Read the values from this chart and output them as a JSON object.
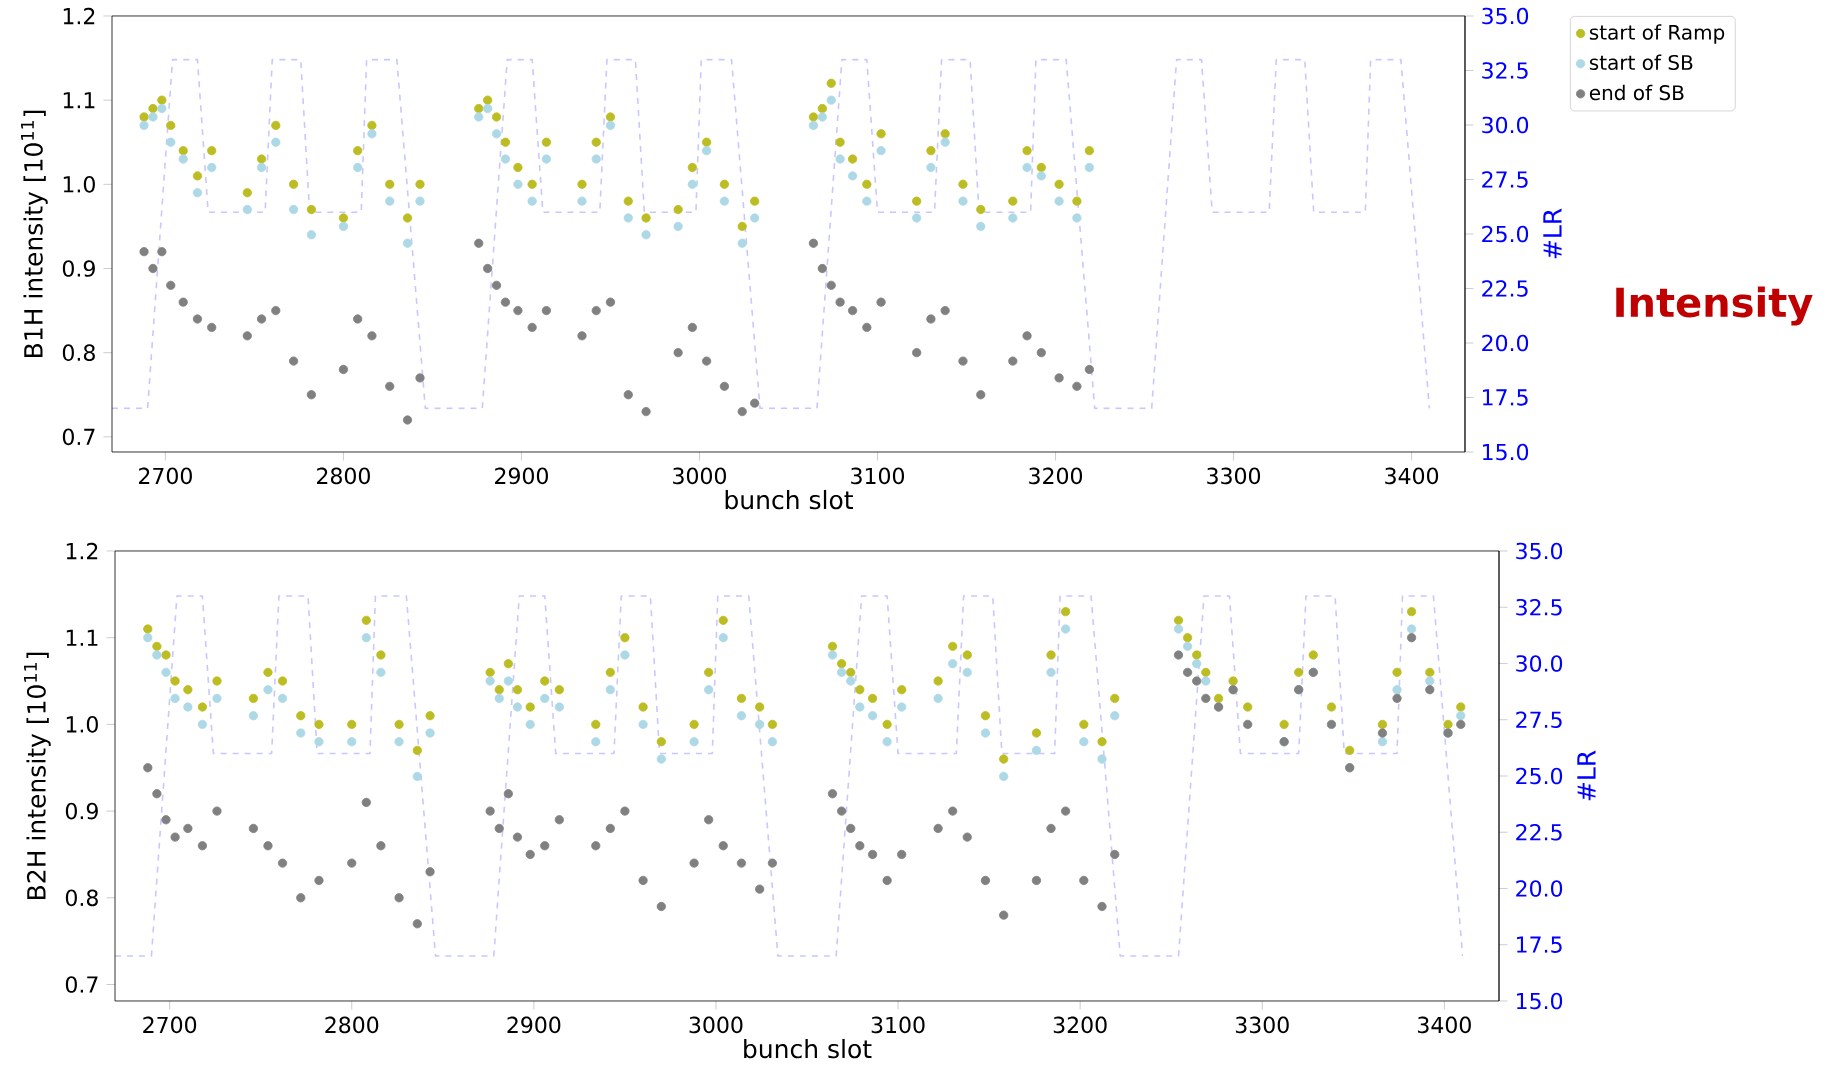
{
  "chart_data": [
    {
      "type": "scatter",
      "xlabel": "bunch slot",
      "ylabel": "B1H intensity [10$^{11}$]",
      "y2label": "#LR",
      "annotations": [
        "**Intensity**"
      ],
      "xlim": [
        2670,
        3430
      ],
      "xticks": [
        2700,
        2800,
        2900,
        3000,
        3100,
        3200,
        3300,
        3400
      ],
      "ylim": [
        0.682,
        1.2
      ],
      "yticks": [
        0.7,
        0.8,
        0.9,
        {
          "value": 1,
          "label": "1.0"
        },
        1.1,
        1.2
      ],
      "y2lim": [
        15,
        35
      ],
      "y2ticks": [
        {
          "value": 15,
          "label": "15.0"
        },
        17.5,
        {
          "value": 20,
          "label": "20.0"
        },
        22.5,
        {
          "value": 25,
          "label": "25.0"
        },
        27.5,
        {
          "value": 30,
          "label": "30.0"
        },
        32.5,
        {
          "value": 35,
          "label": "35.0"
        }
      ],
      "legend": "top right",
      "x": [
        2688,
        2693,
        2698,
        2703,
        2710,
        2718,
        2726,
        2746,
        2754,
        2762,
        2772,
        2782,
        2800,
        2808,
        2816,
        2826,
        2836,
        2843,
        2876,
        2881,
        2886,
        2891,
        2898,
        2906,
        2914,
        2934,
        2942,
        2950,
        2960,
        2970,
        2988,
        2996,
        3004,
        3014,
        3024,
        3031,
        3064,
        3069,
        3074,
        3079,
        3086,
        3094,
        3102,
        3122,
        3130,
        3138,
        3148,
        3158,
        3176,
        3184,
        3192,
        3202,
        3212,
        3219
      ],
      "series": [
        {
          "name": "start of Ramp",
          "marker": "circle",
          "color": "#bcbd22",
          "values": [
            1.08,
            1.09,
            1.1,
            1.07,
            1.04,
            1.01,
            1.04,
            0.99,
            1.03,
            1.07,
            1.0,
            0.97,
            0.96,
            1.04,
            1.07,
            1.0,
            0.96,
            1.0,
            1.09,
            1.1,
            1.08,
            1.05,
            1.02,
            1.0,
            1.05,
            1.0,
            1.05,
            1.08,
            0.98,
            0.96,
            0.97,
            1.02,
            1.05,
            1.0,
            0.95,
            0.98,
            1.08,
            1.09,
            1.12,
            1.05,
            1.03,
            1.0,
            1.06,
            0.98,
            1.04,
            1.06,
            1.0,
            0.97,
            0.98,
            1.04,
            1.02,
            1.0,
            0.98,
            1.04
          ]
        },
        {
          "name": "start of SB",
          "marker": "circle",
          "color": "#add8e6",
          "values": [
            1.07,
            1.08,
            1.09,
            1.05,
            1.03,
            0.99,
            1.02,
            0.97,
            1.02,
            1.05,
            0.97,
            0.94,
            0.95,
            1.02,
            1.06,
            0.98,
            0.93,
            0.98,
            1.08,
            1.09,
            1.06,
            1.03,
            1.0,
            0.98,
            1.03,
            0.98,
            1.03,
            1.07,
            0.96,
            0.94,
            0.95,
            1.0,
            1.04,
            0.98,
            0.93,
            0.96,
            1.07,
            1.08,
            1.1,
            1.03,
            1.01,
            0.98,
            1.04,
            0.96,
            1.02,
            1.05,
            0.98,
            0.95,
            0.96,
            1.02,
            1.01,
            0.98,
            0.96,
            1.02
          ]
        },
        {
          "name": "end of SB",
          "marker": "circle",
          "color": "#808080",
          "values": [
            0.92,
            0.9,
            0.92,
            0.88,
            0.86,
            0.84,
            0.83,
            0.82,
            0.84,
            0.85,
            0.79,
            0.75,
            0.78,
            0.84,
            0.82,
            0.76,
            0.72,
            0.77,
            0.93,
            0.9,
            0.88,
            0.86,
            0.85,
            0.83,
            0.85,
            0.82,
            0.85,
            0.86,
            0.75,
            0.73,
            0.8,
            0.83,
            0.79,
            0.76,
            0.73,
            0.74,
            0.93,
            0.9,
            0.88,
            0.86,
            0.85,
            0.83,
            0.86,
            0.8,
            0.84,
            0.85,
            0.79,
            0.75,
            0.79,
            0.82,
            0.8,
            0.77,
            0.76,
            0.78
          ]
        },
        {
          "type": "line",
          "axis": "y2",
          "line_style": "dashed",
          "marker": "none",
          "color": "#c8c8ff",
          "x": [
            2670,
            2690,
            2704,
            2718,
            2724,
            2756,
            2760,
            2776,
            2781,
            2810,
            2813,
            2830,
            2846,
            2878,
            2892,
            2906,
            2912,
            2944,
            2948,
            2964,
            2969,
            2998,
            3001,
            3018,
            3034,
            3066,
            3080,
            3094,
            3100,
            3132,
            3136,
            3152,
            3157,
            3186,
            3189,
            3206,
            3222,
            3254,
            3268,
            3282,
            3288,
            3320,
            3324,
            3340,
            3345,
            3374,
            3377,
            3394,
            3410
          ],
          "values": [
            17,
            17,
            33,
            33,
            26,
            26,
            33,
            33,
            26,
            26,
            33,
            33,
            17,
            17,
            33,
            33,
            26,
            26,
            33,
            33,
            26,
            26,
            33,
            33,
            17,
            17,
            33,
            33,
            26,
            26,
            33,
            33,
            26,
            26,
            33,
            33,
            17,
            17,
            33,
            33,
            26,
            26,
            33,
            33,
            26,
            26,
            33,
            33,
            17
          ]
        }
      ]
    },
    {
      "type": "scatter",
      "xlabel": "bunch slot",
      "ylabel": "B2H intensity [10$^{11}$]",
      "y2label": "#LR",
      "xlim": [
        2670,
        3430
      ],
      "xticks": [
        2700,
        2800,
        2900,
        3000,
        3100,
        3200,
        3300,
        3400
      ],
      "ylim": [
        0.681,
        1.2
      ],
      "yticks": [
        0.7,
        0.8,
        0.9,
        {
          "value": 1,
          "label": "1.0"
        },
        1.1,
        1.2
      ],
      "y2lim": [
        15,
        35
      ],
      "y2ticks": [
        {
          "value": 15,
          "label": "15.0"
        },
        17.5,
        {
          "value": 20,
          "label": "20.0"
        },
        22.5,
        {
          "value": 25,
          "label": "25.0"
        },
        27.5,
        {
          "value": 30,
          "label": "30.0"
        },
        32.5,
        {
          "value": 35,
          "label": "35.0"
        }
      ],
      "x": [
        2688,
        2693,
        2698,
        2703,
        2710,
        2718,
        2726,
        2746,
        2754,
        2762,
        2772,
        2782,
        2800,
        2808,
        2816,
        2826,
        2836,
        2843,
        2876,
        2881,
        2886,
        2891,
        2898,
        2906,
        2914,
        2934,
        2942,
        2950,
        2960,
        2970,
        2988,
        2996,
        3004,
        3014,
        3024,
        3031,
        3064,
        3069,
        3074,
        3079,
        3086,
        3094,
        3102,
        3122,
        3130,
        3138,
        3148,
        3158,
        3176,
        3184,
        3192,
        3202,
        3212,
        3219,
        3254,
        3259,
        3264,
        3269,
        3276,
        3284,
        3292,
        3312,
        3320,
        3328,
        3338,
        3348,
        3366,
        3374,
        3382,
        3392,
        3402,
        3409
      ],
      "series": [
        {
          "marker": "circle",
          "color": "#bcbd22",
          "values": [
            1.11,
            1.09,
            1.08,
            1.05,
            1.04,
            1.02,
            1.05,
            1.03,
            1.06,
            1.05,
            1.01,
            1.0,
            1.0,
            1.12,
            1.08,
            1.0,
            0.97,
            1.01,
            1.06,
            1.04,
            1.07,
            1.04,
            1.02,
            1.05,
            1.04,
            1.0,
            1.06,
            1.1,
            1.02,
            0.98,
            1.0,
            1.06,
            1.12,
            1.03,
            1.02,
            1.0,
            1.09,
            1.07,
            1.06,
            1.04,
            1.03,
            1.0,
            1.04,
            1.05,
            1.09,
            1.08,
            1.01,
            0.96,
            0.99,
            1.08,
            1.13,
            1.0,
            0.98,
            1.03,
            1.12,
            1.1,
            1.08,
            1.06,
            1.03,
            1.05,
            1.02,
            1.0,
            1.06,
            1.08,
            1.02,
            0.97,
            1.0,
            1.06,
            1.13,
            1.06,
            1.0,
            1.02
          ]
        },
        {
          "marker": "circle",
          "color": "#add8e6",
          "values": [
            1.1,
            1.08,
            1.06,
            1.03,
            1.02,
            1.0,
            1.03,
            1.01,
            1.04,
            1.03,
            0.99,
            0.98,
            0.98,
            1.1,
            1.06,
            0.98,
            0.94,
            0.99,
            1.05,
            1.03,
            1.05,
            1.02,
            1.0,
            1.03,
            1.02,
            0.98,
            1.04,
            1.08,
            1.0,
            0.96,
            0.98,
            1.04,
            1.1,
            1.01,
            1.0,
            0.98,
            1.08,
            1.06,
            1.05,
            1.02,
            1.01,
            0.98,
            1.02,
            1.03,
            1.07,
            1.06,
            0.99,
            0.94,
            0.97,
            1.06,
            1.11,
            0.98,
            0.96,
            1.01,
            1.11,
            1.09,
            1.07,
            1.05,
            1.02,
            1.04,
            null,
            0.98,
            1.04,
            1.06,
            null,
            0.95,
            0.98,
            1.04,
            1.11,
            1.05,
            0.99,
            1.01
          ]
        },
        {
          "marker": "circle",
          "color": "#808080",
          "values": [
            0.95,
            0.92,
            0.89,
            0.87,
            0.88,
            0.86,
            0.9,
            0.88,
            0.86,
            0.84,
            0.8,
            0.82,
            0.84,
            0.91,
            0.86,
            0.8,
            0.77,
            0.83,
            0.9,
            0.88,
            0.92,
            0.87,
            0.85,
            0.86,
            0.89,
            0.86,
            0.88,
            0.9,
            0.82,
            0.79,
            0.84,
            0.89,
            0.86,
            0.84,
            0.81,
            0.84,
            0.92,
            0.9,
            0.88,
            0.86,
            0.85,
            0.82,
            0.85,
            0.88,
            0.9,
            0.87,
            0.82,
            0.78,
            0.82,
            0.88,
            0.9,
            0.82,
            0.79,
            0.85,
            1.08,
            1.06,
            1.05,
            1.03,
            1.02,
            1.04,
            1.0,
            0.98,
            1.04,
            1.06,
            1.0,
            0.95,
            0.99,
            1.03,
            1.1,
            1.04,
            0.99,
            1.0
          ]
        },
        {
          "type": "line",
          "axis": "y2",
          "line_style": "dashed",
          "marker": "none",
          "color": "#c8c8ff",
          "x": [
            2670,
            2690,
            2704,
            2718,
            2724,
            2756,
            2760,
            2776,
            2781,
            2810,
            2813,
            2830,
            2846,
            2878,
            2892,
            2906,
            2912,
            2944,
            2948,
            2964,
            2969,
            2998,
            3001,
            3018,
            3034,
            3066,
            3080,
            3094,
            3100,
            3132,
            3136,
            3152,
            3157,
            3186,
            3189,
            3206,
            3222,
            3254,
            3268,
            3282,
            3288,
            3320,
            3324,
            3340,
            3345,
            3374,
            3377,
            3394,
            3410
          ],
          "values": [
            17,
            17,
            33,
            33,
            26,
            26,
            33,
            33,
            26,
            26,
            33,
            33,
            17,
            17,
            33,
            33,
            26,
            26,
            33,
            33,
            26,
            26,
            33,
            33,
            17,
            17,
            33,
            33,
            26,
            26,
            33,
            33,
            26,
            26,
            33,
            33,
            17,
            17,
            33,
            33,
            26,
            26,
            33,
            33,
            26,
            26,
            33,
            33,
            17
          ]
        }
      ]
    }
  ]
}
